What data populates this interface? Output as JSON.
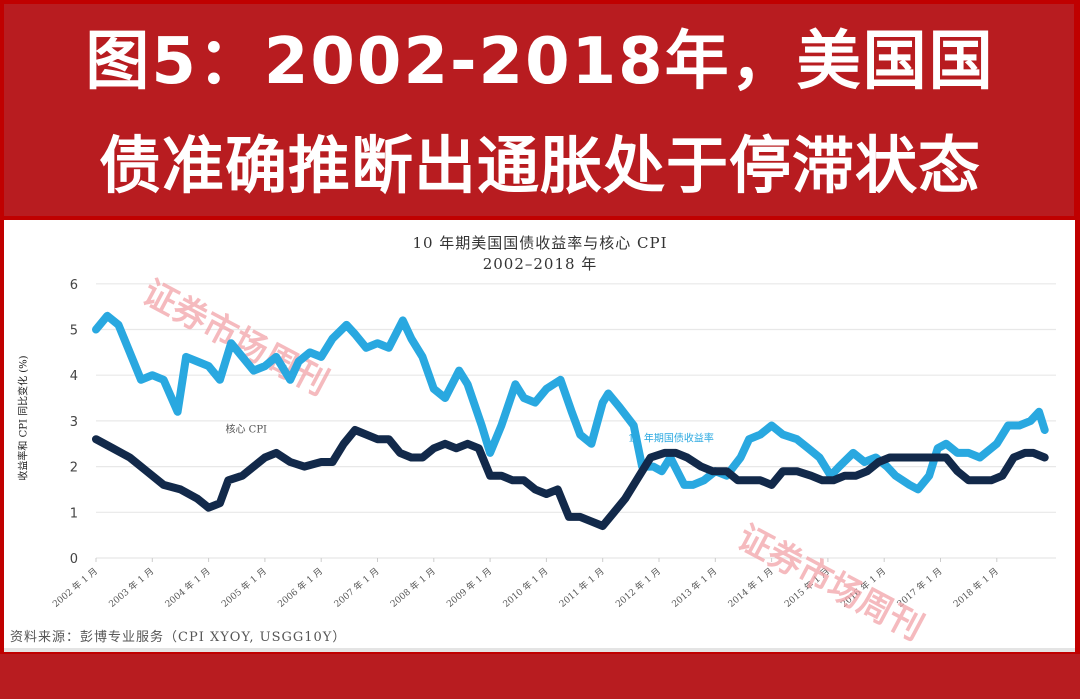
{
  "header": {
    "line1": "图5：2002-2018年，美国国",
    "line2": "债准确推断出通胀处于停滞状态"
  },
  "source": "资料来源：彭博专业服务（CPI XYOY, USGG10Y）",
  "watermark": "证券市场周刊",
  "colors": {
    "yield": "#29a8e0",
    "core_cpi": "#12294a",
    "frame": "#b81c20",
    "watermark": "#f2a3a8"
  },
  "chart_data": {
    "type": "line",
    "title": "10 年期美国国债收益率与核心 CPI",
    "subtitle": "2002–2018 年",
    "xlabel": "",
    "ylabel": "收益率和 CPI 同比变化 (%)",
    "ylim": [
      0,
      6
    ],
    "yticks": [
      0,
      1,
      2,
      3,
      4,
      5,
      6
    ],
    "xlim": [
      2002.0,
      2018.85
    ],
    "grid": true,
    "legend_position": "inline labels",
    "xtick_labels": [
      "2002 年 1 月",
      "2003 年 1 月",
      "2004 年 1 月",
      "2005 年 1 月",
      "2006 年 1 月",
      "2007 年 1 月",
      "2008 年 1 月",
      "2009 年 1 月",
      "2010 年 1 月",
      "2011 年 1 月",
      "2012 年 1 月",
      "2013 年 1 月",
      "2014 年 1 月",
      "2015 年 1 月",
      "2016 年 1 月",
      "2017 年 1 月",
      "2018 年 1 月"
    ],
    "series": [
      {
        "name": "10 年期国债收益率",
        "label_pos": [
          2011.45,
          2.55
        ],
        "x": [
          2002.0,
          2002.2,
          2002.4,
          2002.6,
          2002.8,
          2003.0,
          2003.2,
          2003.45,
          2003.6,
          2003.8,
          2004.0,
          2004.2,
          2004.4,
          2004.6,
          2004.8,
          2005.0,
          2005.2,
          2005.45,
          2005.6,
          2005.8,
          2006.0,
          2006.2,
          2006.45,
          2006.6,
          2006.8,
          2007.0,
          2007.2,
          2007.45,
          2007.6,
          2007.8,
          2008.0,
          2008.2,
          2008.45,
          2008.6,
          2008.85,
          2009.0,
          2009.2,
          2009.45,
          2009.6,
          2009.8,
          2010.0,
          2010.25,
          2010.45,
          2010.6,
          2010.8,
          2011.0,
          2011.1,
          2011.3,
          2011.55,
          2011.7,
          2011.9,
          2012.05,
          2012.2,
          2012.45,
          2012.6,
          2012.8,
          2013.0,
          2013.2,
          2013.45,
          2013.6,
          2013.8,
          2014.0,
          2014.2,
          2014.45,
          2014.65,
          2014.85,
          2015.05,
          2015.2,
          2015.45,
          2015.65,
          2015.85,
          2016.05,
          2016.2,
          2016.45,
          2016.6,
          2016.8,
          2016.95,
          2017.1,
          2017.3,
          2017.5,
          2017.7,
          2017.9,
          2018.0,
          2018.2,
          2018.4,
          2018.6,
          2018.75,
          2018.85
        ],
        "values": [
          5.0,
          5.3,
          5.1,
          4.5,
          3.9,
          4.0,
          3.9,
          3.2,
          4.4,
          4.3,
          4.2,
          3.9,
          4.7,
          4.4,
          4.1,
          4.2,
          4.4,
          3.9,
          4.3,
          4.5,
          4.4,
          4.8,
          5.1,
          4.9,
          4.6,
          4.7,
          4.6,
          5.2,
          4.8,
          4.4,
          3.7,
          3.5,
          4.1,
          3.8,
          2.9,
          2.3,
          2.9,
          3.8,
          3.5,
          3.4,
          3.7,
          3.9,
          3.2,
          2.7,
          2.5,
          3.4,
          3.6,
          3.3,
          2.9,
          2.0,
          2.0,
          1.9,
          2.2,
          1.6,
          1.6,
          1.7,
          1.9,
          1.8,
          2.2,
          2.6,
          2.7,
          2.9,
          2.7,
          2.6,
          2.4,
          2.2,
          1.8,
          2.0,
          2.3,
          2.1,
          2.2,
          2.0,
          1.8,
          1.6,
          1.5,
          1.8,
          2.4,
          2.5,
          2.3,
          2.3,
          2.2,
          2.4,
          2.5,
          2.9,
          2.9,
          3.0,
          3.2,
          2.8
        ]
      },
      {
        "name": "核心 CPI",
        "label_pos": [
          2004.3,
          2.75
        ],
        "x": [
          2002.0,
          2002.3,
          2002.6,
          2002.9,
          2003.2,
          2003.5,
          2003.8,
          2004.0,
          2004.2,
          2004.35,
          2004.6,
          2004.8,
          2005.0,
          2005.2,
          2005.45,
          2005.7,
          2006.0,
          2006.2,
          2006.4,
          2006.6,
          2006.8,
          2007.0,
          2007.2,
          2007.4,
          2007.6,
          2007.8,
          2008.0,
          2008.2,
          2008.4,
          2008.6,
          2008.8,
          2009.0,
          2009.2,
          2009.4,
          2009.6,
          2009.8,
          2010.0,
          2010.2,
          2010.4,
          2010.6,
          2010.8,
          2011.0,
          2011.2,
          2011.4,
          2011.6,
          2011.85,
          2012.1,
          2012.3,
          2012.5,
          2012.75,
          2012.95,
          2013.2,
          2013.4,
          2013.6,
          2013.8,
          2014.0,
          2014.2,
          2014.45,
          2014.7,
          2014.9,
          2015.1,
          2015.3,
          2015.5,
          2015.7,
          2015.9,
          2016.1,
          2016.3,
          2016.5,
          2016.7,
          2016.9,
          2017.1,
          2017.3,
          2017.5,
          2017.7,
          2017.9,
          2018.1,
          2018.3,
          2018.5,
          2018.65,
          2018.85
        ],
        "values": [
          2.6,
          2.4,
          2.2,
          1.9,
          1.6,
          1.5,
          1.3,
          1.1,
          1.2,
          1.7,
          1.8,
          2.0,
          2.2,
          2.3,
          2.1,
          2.0,
          2.1,
          2.1,
          2.5,
          2.8,
          2.7,
          2.6,
          2.6,
          2.3,
          2.2,
          2.2,
          2.4,
          2.5,
          2.4,
          2.5,
          2.4,
          1.8,
          1.8,
          1.7,
          1.7,
          1.5,
          1.4,
          1.5,
          0.9,
          0.9,
          0.8,
          0.7,
          1.0,
          1.3,
          1.7,
          2.2,
          2.3,
          2.3,
          2.2,
          2.0,
          1.9,
          1.9,
          1.7,
          1.7,
          1.7,
          1.6,
          1.9,
          1.9,
          1.8,
          1.7,
          1.7,
          1.8,
          1.8,
          1.9,
          2.1,
          2.2,
          2.2,
          2.2,
          2.2,
          2.2,
          2.2,
          1.9,
          1.7,
          1.7,
          1.7,
          1.8,
          2.2,
          2.3,
          2.3,
          2.2
        ]
      }
    ]
  }
}
